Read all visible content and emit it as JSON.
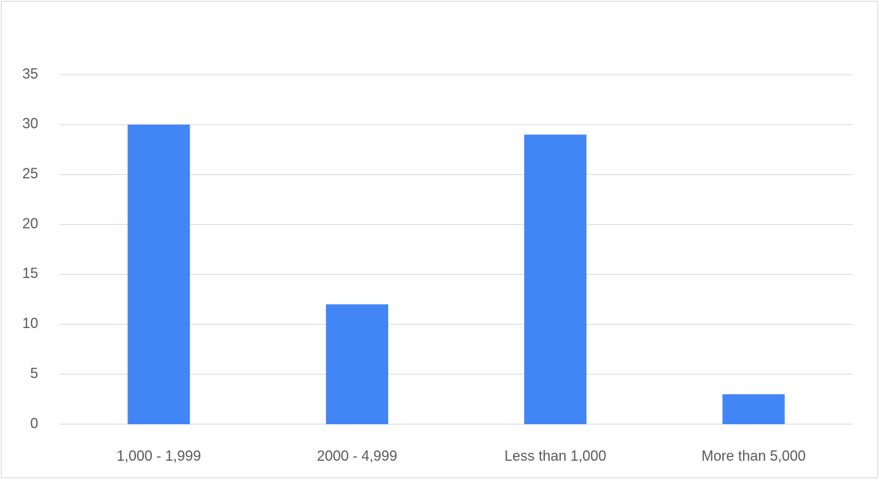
{
  "chart_data": {
    "type": "bar",
    "categories": [
      "1,000 - 1,999",
      "2000 - 4,999",
      "Less than 1,000",
      "More than 5,000"
    ],
    "values": [
      30,
      12,
      29,
      3
    ],
    "color": "#4285f4",
    "ylim": [
      0,
      35
    ],
    "yticks": [
      0,
      5,
      10,
      15,
      20,
      25,
      30,
      35
    ],
    "grid": true
  }
}
